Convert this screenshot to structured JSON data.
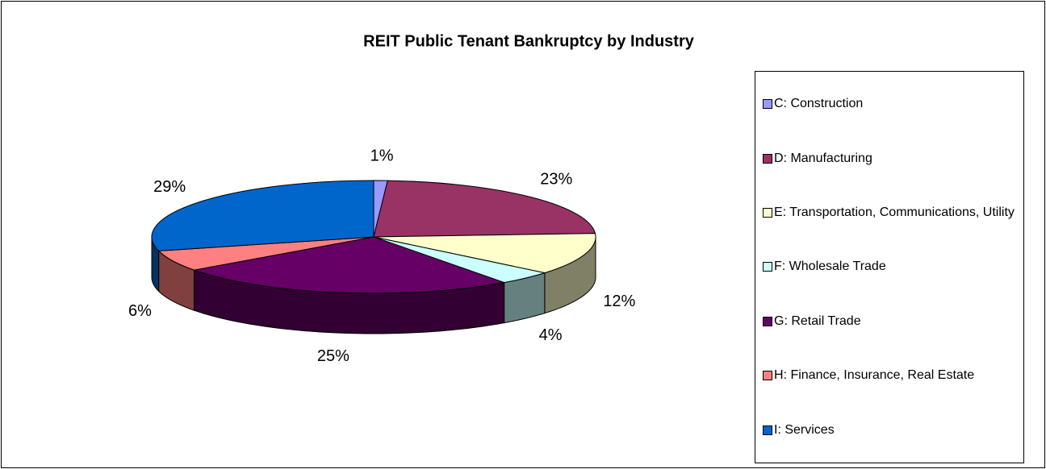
{
  "chart_data": {
    "type": "pie",
    "title": "REIT Public Tenant Bankruptcy by Industry",
    "categories": [
      "C: Construction",
      "D: Manufacturing",
      "E: Transportation, Communications, Utility",
      "F: Wholesale Trade",
      "G: Retail Trade",
      "H: Finance, Insurance, Real Estate",
      "I: Services"
    ],
    "values": [
      1,
      23,
      12,
      4,
      25,
      6,
      29
    ],
    "value_labels": [
      "1%",
      "23%",
      "12%",
      "4%",
      "25%",
      "6%",
      "29%"
    ],
    "colors": [
      "#9999ff",
      "#993366",
      "#ffffcc",
      "#ccffff",
      "#660066",
      "#ff8080",
      "#0066cc"
    ],
    "legend": "right"
  }
}
